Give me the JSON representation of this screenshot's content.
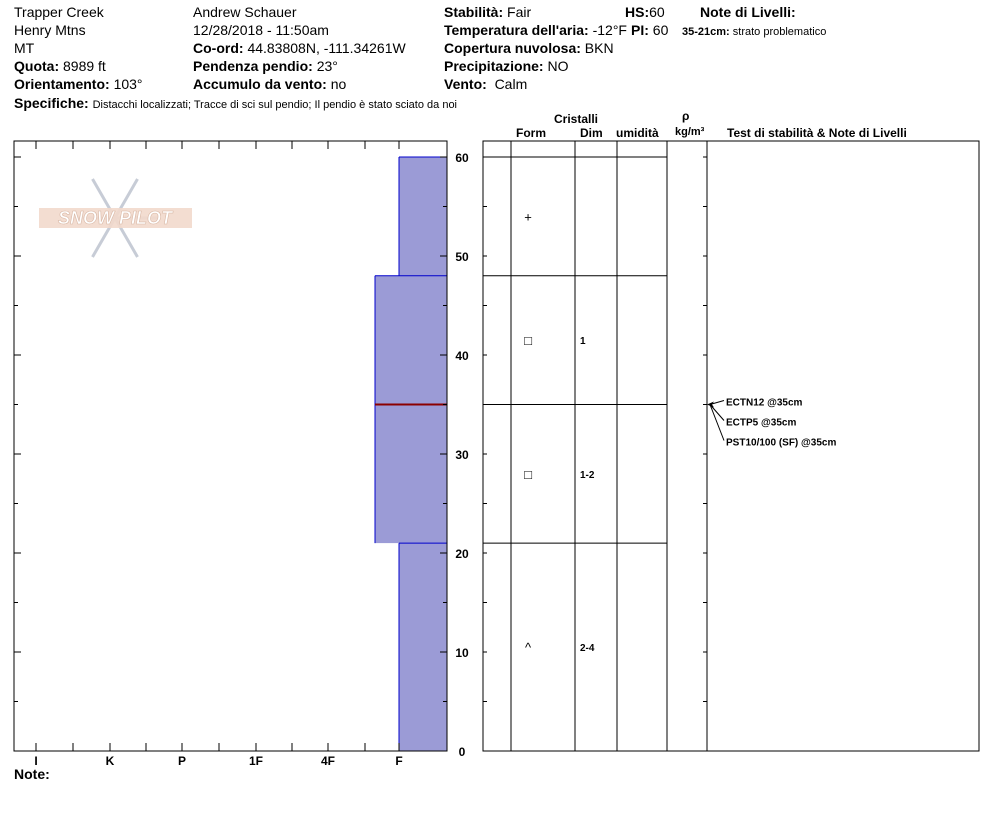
{
  "header": {
    "location": "Trapper Creek",
    "range": "Henry Mtns",
    "state": "MT",
    "elevation_label": "Quota:",
    "elevation_value": "8989 ft",
    "aspect_label": "Orientamento:",
    "aspect_value": "103°",
    "observer": "Andrew Schauer",
    "datetime": "12/28/2018 - 11:50am",
    "coord_label": "Co-ord:",
    "coord_value": "44.83808N, -111.34261W",
    "slope_label": "Pendenza pendio:",
    "slope_value": "23°",
    "wind_loading_label": "Accumulo da vento:",
    "wind_loading_value": "no",
    "stability_label": "Stabilità:",
    "stability_value": "Fair",
    "air_temp_label": "Temperatura dell'aria:",
    "air_temp_value": "-12°F",
    "sky_label": "Copertura nuvolosa:",
    "sky_value": "BKN",
    "precip_label": "Precipitazione:",
    "precip_value": "NO",
    "wind_label": "Vento:",
    "wind_value": "Calm",
    "hs_label": "HS:",
    "hs_value": "60",
    "pi_label": "PI:",
    "pi_value": "60",
    "layer_notes_label": "Note di Livelli:",
    "layer_note_range": "35-21cm:",
    "layer_note_text": "strato problematico",
    "specifics_label": "Specifiche:",
    "specifics_text": "Distacchi localizzati;  Tracce di sci sul pendio;  Il pendio è stato sciato da noi",
    "notes_label": "Note:"
  },
  "table_headers": {
    "crystals": "Cristalli",
    "form": "Form",
    "size": "Dim",
    "moisture": "umidità",
    "rho": "ρ",
    "density_unit": "kg/m³",
    "stability_notes": "Test di stabilità & Note di Livelli"
  },
  "logo": {
    "text": "SNOW PILOT"
  },
  "chart_data": {
    "type": "bar",
    "description_free": true,
    "y_axis": {
      "range": [
        0,
        60
      ],
      "ticks": [
        0,
        10,
        20,
        30,
        40,
        50,
        60
      ]
    },
    "x_axis": {
      "ticks": [
        "I",
        "K",
        "P",
        "1F",
        "4F",
        "F"
      ]
    },
    "hardness_layers": [
      {
        "top": 60,
        "bottom": 48,
        "hardness": "F"
      },
      {
        "top": 48,
        "bottom": 21,
        "hardness": "F+"
      },
      {
        "top": 21,
        "bottom": 0,
        "hardness": "F"
      }
    ],
    "weak_layer_depth": 35,
    "crystal_layers": [
      {
        "top": 60,
        "bottom": 48,
        "form": "+",
        "size": ""
      },
      {
        "top": 48,
        "bottom": 35,
        "form": "□",
        "size": "1"
      },
      {
        "top": 35,
        "bottom": 21,
        "form": "□",
        "size": "1-2"
      },
      {
        "top": 21,
        "bottom": 0,
        "form": "^",
        "size": "2-4"
      }
    ],
    "stability_tests": [
      {
        "label": "ECTN12 @35cm",
        "depth": 35
      },
      {
        "label": "ECTP5 @35cm",
        "depth": 35
      },
      {
        "label": "PST10/100 (SF) @35cm",
        "depth": 35
      }
    ],
    "colors": {
      "fill": "#9b9bd6",
      "border": "#0000cc",
      "weak_layer": "#8b0000"
    }
  }
}
